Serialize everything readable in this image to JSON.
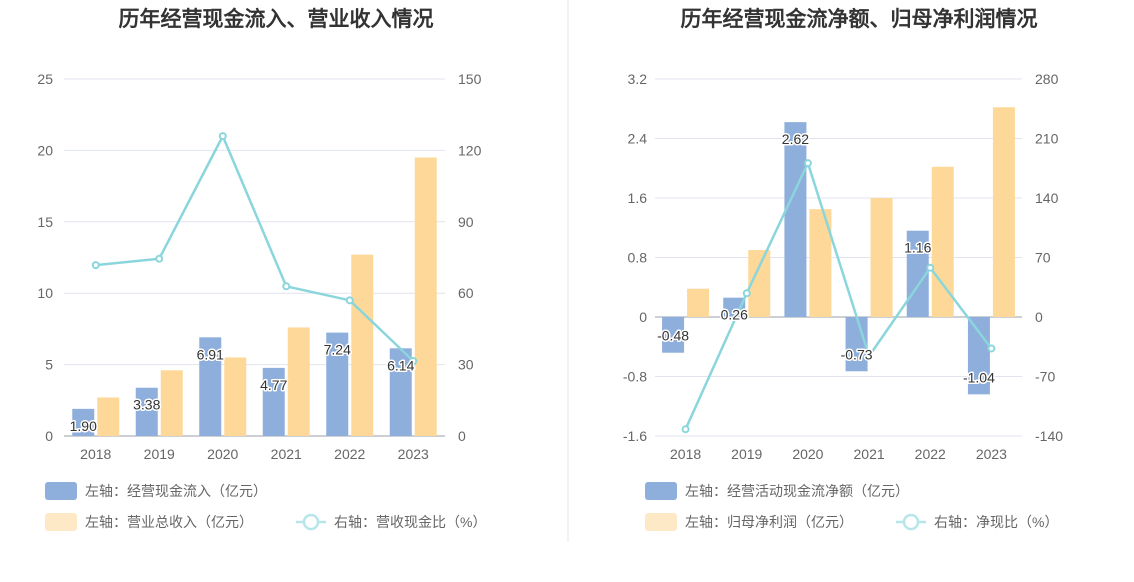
{
  "chart_data": [
    {
      "type": "bar",
      "title": "历年经营现金流入、营业收入情况",
      "categories": [
        "2018",
        "2019",
        "2020",
        "2021",
        "2022",
        "2023"
      ],
      "left_axis": {
        "ylim": [
          0,
          25
        ],
        "ticks": [
          0,
          5,
          10,
          15,
          20,
          25
        ]
      },
      "right_axis": {
        "ylim": [
          0,
          150
        ],
        "ticks": [
          0,
          30,
          60,
          90,
          120,
          150
        ]
      },
      "series": [
        {
          "name": "左轴：经营现金流入（亿元）",
          "kind": "bar",
          "axis": "left",
          "color": "#8eaedc",
          "values": [
            1.9,
            3.38,
            6.91,
            4.77,
            7.24,
            6.14
          ],
          "labels": [
            "1.90",
            "3.38",
            "6.91",
            "4.77",
            "7.24",
            "6.14"
          ]
        },
        {
          "name": "左轴：营业总收入（亿元）",
          "kind": "bar",
          "axis": "left",
          "color": "#fdd898",
          "values": [
            2.7,
            4.6,
            5.5,
            7.6,
            12.7,
            19.5
          ]
        },
        {
          "name": "右轴：营收现金比（%）",
          "kind": "line",
          "axis": "right",
          "color": "#8ad6dc",
          "values": [
            71.8,
            74.5,
            126,
            62.9,
            57,
            31.5
          ]
        }
      ],
      "grid": true,
      "legend": "bottom-left"
    },
    {
      "type": "bar",
      "title": "历年经营现金流净额、归母净利润情况",
      "categories": [
        "2018",
        "2019",
        "2020",
        "2021",
        "2022",
        "2023"
      ],
      "left_axis": {
        "ylim": [
          -1.6,
          3.2
        ],
        "ticks": [
          "-1.6",
          "-0.8",
          "0",
          "0.8",
          "1.6",
          "2.4",
          "3.2"
        ]
      },
      "right_axis": {
        "ylim": [
          -140,
          280
        ],
        "ticks": [
          -140,
          -70,
          0,
          70,
          140,
          210,
          280
        ]
      },
      "series": [
        {
          "name": "左轴：经营活动现金流净额（亿元）",
          "kind": "bar",
          "axis": "left",
          "color": "#8eaedc",
          "values": [
            -0.48,
            0.26,
            2.62,
            -0.73,
            1.16,
            -1.04
          ],
          "labels": [
            "-0.48",
            "0.26",
            "2.62",
            "-0.73",
            "1.16",
            "-1.04"
          ]
        },
        {
          "name": "左轴：归母净利润（亿元）",
          "kind": "bar",
          "axis": "left",
          "color": "#fdd898",
          "values": [
            0.38,
            0.9,
            1.45,
            1.6,
            2.02,
            2.82
          ]
        },
        {
          "name": "右轴：净现比（%）",
          "kind": "line",
          "axis": "right",
          "color": "#8ad6dc",
          "values": [
            -132,
            28,
            181,
            -46,
            58,
            -37
          ]
        }
      ],
      "grid": true,
      "legend": "bottom-left"
    }
  ],
  "colors": {
    "bar1": "#8eaedc",
    "bar2": "#fdd898",
    "line": "#8ad6dc",
    "grid": "#e1e4ef",
    "divider": "#e6e6e6"
  }
}
